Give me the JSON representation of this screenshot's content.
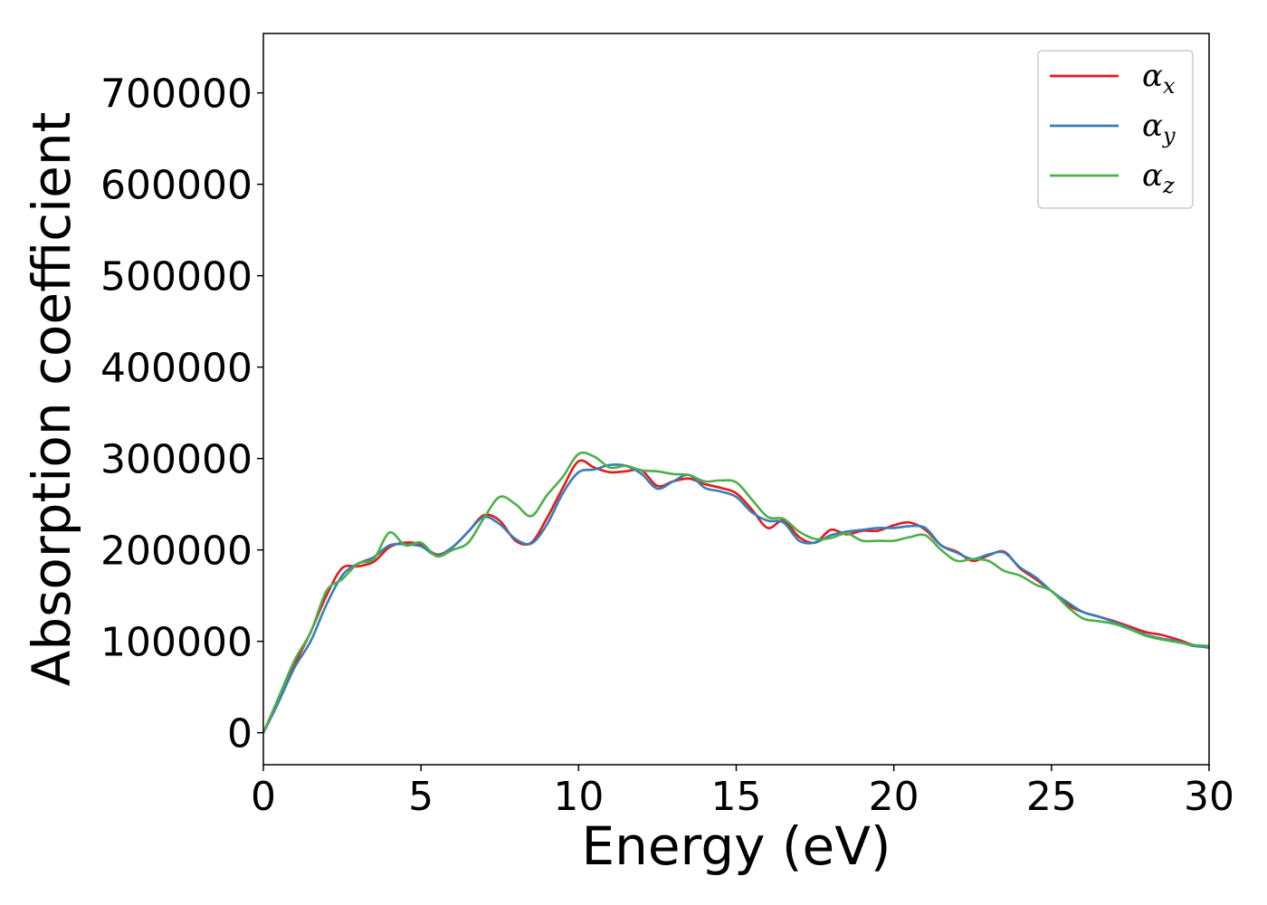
{
  "chart_data": {
    "type": "line",
    "title": "",
    "xlabel": "Energy (eV)",
    "ylabel": "Absorption coefficient",
    "xlim": [
      0,
      30
    ],
    "ylim": [
      -35000,
      765000
    ],
    "xticks": [
      0,
      5,
      10,
      15,
      20,
      25,
      30
    ],
    "yticks": [
      0,
      100000,
      200000,
      300000,
      400000,
      500000,
      600000,
      700000
    ],
    "grid": false,
    "legend_position": "top-right",
    "series": [
      {
        "name": "α_x",
        "label_main": "α",
        "label_sub": "x",
        "color": "#e41a1c",
        "x": [
          0,
          0.5,
          1,
          1.5,
          2,
          2.5,
          3,
          3.5,
          4,
          4.5,
          5,
          5.5,
          6,
          6.5,
          7,
          7.5,
          8,
          8.5,
          9,
          9.5,
          10,
          10.5,
          11,
          11.5,
          12,
          12.5,
          13,
          13.5,
          14,
          14.5,
          15,
          15.5,
          16,
          16.5,
          17,
          17.5,
          18,
          18.5,
          19,
          19.5,
          20,
          20.5,
          21,
          21.5,
          22,
          22.5,
          23,
          23.5,
          24,
          24.5,
          25,
          25.5,
          26,
          26.5,
          27,
          27.5,
          28,
          28.5,
          29,
          29.5,
          30
        ],
        "y": [
          0,
          35000,
          75000,
          110000,
          150000,
          180000,
          182000,
          187000,
          203000,
          208000,
          206000,
          195000,
          203000,
          220000,
          238000,
          232000,
          210000,
          208000,
          235000,
          268000,
          297000,
          290000,
          285000,
          286000,
          287000,
          270000,
          275000,
          278000,
          272000,
          268000,
          262000,
          244000,
          224000,
          232000,
          214000,
          208000,
          222000,
          217000,
          221000,
          221000,
          227000,
          230000,
          222000,
          205000,
          198000,
          188000,
          194000,
          198000,
          180000,
          168000,
          155000,
          140000,
          132000,
          127000,
          122000,
          116000,
          110000,
          107000,
          102000,
          96000,
          93000
        ]
      },
      {
        "name": "α_y",
        "label_main": "α",
        "label_sub": "y",
        "color": "#377eb8",
        "x": [
          0,
          0.5,
          1,
          1.5,
          2,
          2.5,
          3,
          3.5,
          4,
          4.5,
          5,
          5.5,
          6,
          6.5,
          7,
          7.5,
          8,
          8.5,
          9,
          9.5,
          10,
          10.5,
          11,
          11.5,
          12,
          12.5,
          13,
          13.5,
          14,
          14.5,
          15,
          15.5,
          16,
          16.5,
          17,
          17.5,
          18,
          18.5,
          19,
          19.5,
          20,
          20.5,
          21,
          21.5,
          22,
          22.5,
          23,
          23.5,
          24,
          24.5,
          25,
          25.5,
          26,
          26.5,
          27,
          27.5,
          28,
          28.5,
          29,
          29.5,
          30
        ],
        "y": [
          0,
          35000,
          72000,
          100000,
          140000,
          172000,
          185000,
          192000,
          205000,
          206000,
          204000,
          194000,
          203000,
          220000,
          236000,
          228000,
          212000,
          207000,
          228000,
          262000,
          285000,
          288000,
          293000,
          292000,
          283000,
          267000,
          275000,
          282000,
          268000,
          264000,
          258000,
          241000,
          232000,
          230000,
          210000,
          208000,
          216000,
          220000,
          222000,
          224000,
          224000,
          226000,
          224000,
          205000,
          197000,
          190000,
          195000,
          197000,
          181000,
          170000,
          155000,
          143000,
          132000,
          127000,
          121000,
          114000,
          107000,
          103000,
          100000,
          95000,
          94000
        ]
      },
      {
        "name": "α_z",
        "label_main": "α",
        "label_sub": "z",
        "color": "#4daf4a",
        "x": [
          0,
          0.5,
          1,
          1.5,
          2,
          2.5,
          3,
          3.5,
          4,
          4.5,
          5,
          5.5,
          6,
          6.5,
          7,
          7.5,
          8,
          8.5,
          9,
          9.5,
          10,
          10.5,
          11,
          11.5,
          12,
          12.5,
          13,
          13.5,
          14,
          14.5,
          15,
          15.5,
          16,
          16.5,
          17,
          17.5,
          18,
          18.5,
          19,
          19.5,
          20,
          20.5,
          21,
          21.5,
          22,
          22.5,
          23,
          23.5,
          24,
          24.5,
          25,
          25.5,
          26,
          26.5,
          27,
          27.5,
          28,
          28.5,
          29,
          29.5,
          30
        ],
        "y": [
          0,
          40000,
          80000,
          110000,
          155000,
          168000,
          185000,
          190000,
          219000,
          205000,
          208000,
          193000,
          200000,
          208000,
          235000,
          258000,
          250000,
          237000,
          260000,
          280000,
          305000,
          302000,
          290000,
          292000,
          287000,
          286000,
          283000,
          282000,
          275000,
          276000,
          274000,
          255000,
          236000,
          234000,
          220000,
          212000,
          213000,
          218000,
          210000,
          210000,
          210000,
          214000,
          216000,
          200000,
          188000,
          190000,
          188000,
          177000,
          172000,
          162000,
          155000,
          138000,
          125000,
          122000,
          119000,
          113000,
          106000,
          102000,
          99000,
          96000,
          95000
        ]
      }
    ]
  }
}
